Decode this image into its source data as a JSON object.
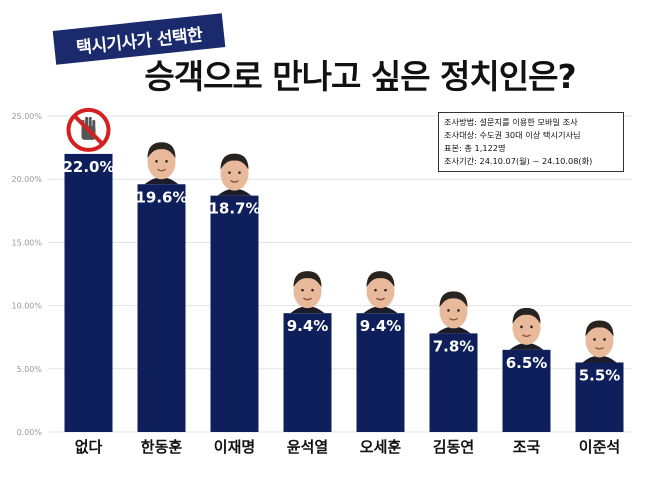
{
  "subtitle": "택시기사가 선택한",
  "title": "승객으로 만나고 싶은 정치인은?",
  "info_box": [
    "조사방법: 설문지를 이용한 모바일 조사",
    "조사대상: 수도권 30대 이상 택시기사님",
    "표본: 총 1,122명",
    "조사기간: 24.10.07(월) ~ 24.10.08(화)"
  ],
  "chart_data": {
    "type": "bar",
    "categories": [
      "없다",
      "한동훈",
      "이재명",
      "윤석열",
      "오세훈",
      "김동연",
      "조국",
      "이준석"
    ],
    "values": [
      22.0,
      19.6,
      18.7,
      9.4,
      9.4,
      7.8,
      6.5,
      5.5
    ],
    "value_labels": [
      "22.0%",
      "19.6%",
      "18.7%",
      "9.4%",
      "9.4%",
      "7.8%",
      "6.5%",
      "5.5%"
    ],
    "ylim": [
      0,
      25
    ],
    "yticks": [
      0,
      5,
      10,
      15,
      20,
      25
    ],
    "ytick_labels": [
      "0.00%",
      "5.00%",
      "10.00%",
      "15.00%",
      "20.00%",
      "25.00%"
    ],
    "grid": true,
    "bar_color": "#0f1f5c",
    "no_answer_icon": "prohibited-hand-icon",
    "portrait_icons": [
      "portrait-icon",
      "portrait-icon",
      "portrait-icon",
      "portrait-icon",
      "portrait-icon",
      "portrait-icon",
      "portrait-icon"
    ]
  }
}
